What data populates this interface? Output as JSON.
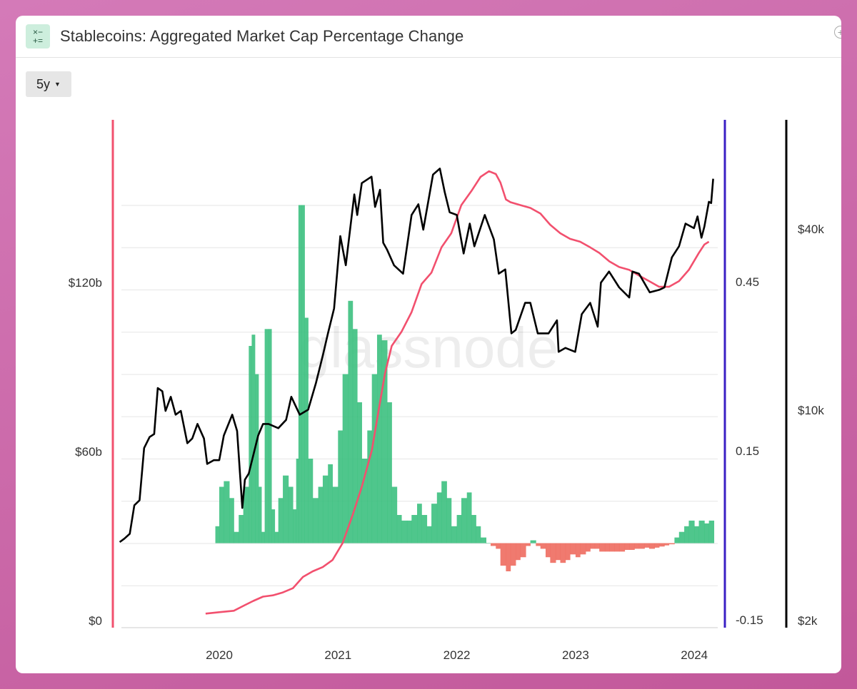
{
  "header": {
    "title": "Stablecoins: Aggregated Market Cap Percentage Change",
    "icon": "calculator-icon",
    "add_icon": "plus-circle-icon"
  },
  "range_selector": {
    "value": "5y",
    "icon": "caret-down-icon"
  },
  "watermark": "glassnode",
  "colors": {
    "market_cap": "#f2506e",
    "pct_positive": "#3cc07f",
    "pct_negative": "#ee6b5f",
    "price": "#000000",
    "axis_left": "#f2506e",
    "axis_mid": "#3a1fc4",
    "axis_right": "#000000"
  },
  "chart_data": {
    "type": "bar+line",
    "title": "Stablecoins: Aggregated Market Cap Percentage Change",
    "x_ticks": [
      "2020",
      "2021",
      "2022",
      "2023",
      "2024"
    ],
    "xlim": [
      "2019-03-01",
      "2024-03-15"
    ],
    "y_left": {
      "ticks": [
        "$0",
        "$60b",
        "$120b"
      ],
      "tick_values": [
        0,
        60,
        120
      ],
      "unit": "billion USD"
    },
    "y_mid": {
      "ticks": [
        "-0.15",
        "0.15",
        "0.45"
      ],
      "tick_values": [
        -0.15,
        0.15,
        0.45
      ]
    },
    "y_right": {
      "ticks": [
        "$2k",
        "$10k",
        "$40k"
      ],
      "tick_values": [
        2000,
        10000,
        40000
      ],
      "scale": "log"
    },
    "grid": true,
    "market_cap": [
      [
        "2019-11-20",
        5
      ],
      [
        "2020-01-01",
        5.5
      ],
      [
        "2020-02-15",
        6
      ],
      [
        "2020-03-20",
        8
      ],
      [
        "2020-04-15",
        9.5
      ],
      [
        "2020-05-15",
        11
      ],
      [
        "2020-06-15",
        11.5
      ],
      [
        "2020-07-15",
        12.5
      ],
      [
        "2020-08-15",
        14
      ],
      [
        "2020-09-15",
        18
      ],
      [
        "2020-10-15",
        20
      ],
      [
        "2020-11-15",
        21.5
      ],
      [
        "2020-12-15",
        24
      ],
      [
        "2021-01-15",
        30
      ],
      [
        "2021-02-15",
        40
      ],
      [
        "2021-03-15",
        50
      ],
      [
        "2021-04-15",
        63
      ],
      [
        "2021-05-10",
        80
      ],
      [
        "2021-05-25",
        90
      ],
      [
        "2021-06-15",
        100
      ],
      [
        "2021-07-15",
        105
      ],
      [
        "2021-08-15",
        112
      ],
      [
        "2021-09-15",
        122
      ],
      [
        "2021-10-15",
        126
      ],
      [
        "2021-11-15",
        135
      ],
      [
        "2021-12-15",
        140
      ],
      [
        "2022-01-15",
        150
      ],
      [
        "2022-02-15",
        155
      ],
      [
        "2022-03-15",
        160
      ],
      [
        "2022-04-10",
        162
      ],
      [
        "2022-05-01",
        161
      ],
      [
        "2022-05-15",
        158
      ],
      [
        "2022-06-01",
        152
      ],
      [
        "2022-06-15",
        151
      ],
      [
        "2022-07-15",
        150
      ],
      [
        "2022-08-15",
        149
      ],
      [
        "2022-09-15",
        147
      ],
      [
        "2022-10-15",
        143
      ],
      [
        "2022-11-15",
        140
      ],
      [
        "2022-12-15",
        138
      ],
      [
        "2023-01-15",
        137
      ],
      [
        "2023-02-15",
        135
      ],
      [
        "2023-03-15",
        133
      ],
      [
        "2023-04-15",
        130
      ],
      [
        "2023-05-15",
        128
      ],
      [
        "2023-06-15",
        127
      ],
      [
        "2023-07-15",
        125
      ],
      [
        "2023-08-15",
        123
      ],
      [
        "2023-09-15",
        121
      ],
      [
        "2023-10-15",
        121
      ],
      [
        "2023-11-15",
        123
      ],
      [
        "2023-12-15",
        127
      ],
      [
        "2024-01-15",
        133
      ],
      [
        "2024-02-01",
        136
      ],
      [
        "2024-02-15",
        137
      ]
    ],
    "pct_change": [
      [
        "2019-12-20",
        0.03
      ],
      [
        "2020-01-01",
        0.1
      ],
      [
        "2020-01-15",
        0.11
      ],
      [
        "2020-02-01",
        0.08
      ],
      [
        "2020-02-15",
        0.02
      ],
      [
        "2020-03-01",
        0.05
      ],
      [
        "2020-03-15",
        0.1
      ],
      [
        "2020-04-01",
        0.35
      ],
      [
        "2020-04-10",
        0.37
      ],
      [
        "2020-04-20",
        0.3
      ],
      [
        "2020-05-01",
        0.1
      ],
      [
        "2020-05-10",
        0.02
      ],
      [
        "2020-05-20",
        0.38
      ],
      [
        "2020-06-01",
        0.38
      ],
      [
        "2020-06-10",
        0.06
      ],
      [
        "2020-06-20",
        0.02
      ],
      [
        "2020-07-01",
        0.08
      ],
      [
        "2020-07-15",
        0.12
      ],
      [
        "2020-08-01",
        0.1
      ],
      [
        "2020-08-15",
        0.06
      ],
      [
        "2020-08-25",
        0.15
      ],
      [
        "2020-09-01",
        0.6
      ],
      [
        "2020-09-10",
        0.6
      ],
      [
        "2020-09-20",
        0.4
      ],
      [
        "2020-10-01",
        0.15
      ],
      [
        "2020-10-15",
        0.08
      ],
      [
        "2020-11-01",
        0.1
      ],
      [
        "2020-11-15",
        0.12
      ],
      [
        "2020-12-01",
        0.14
      ],
      [
        "2020-12-15",
        0.1
      ],
      [
        "2021-01-01",
        0.2
      ],
      [
        "2021-01-15",
        0.3
      ],
      [
        "2021-02-01",
        0.43
      ],
      [
        "2021-02-15",
        0.38
      ],
      [
        "2021-03-01",
        0.25
      ],
      [
        "2021-03-15",
        0.15
      ],
      [
        "2021-04-01",
        0.2
      ],
      [
        "2021-04-15",
        0.3
      ],
      [
        "2021-05-01",
        0.37
      ],
      [
        "2021-05-15",
        0.36
      ],
      [
        "2021-06-01",
        0.25
      ],
      [
        "2021-06-15",
        0.1
      ],
      [
        "2021-07-01",
        0.05
      ],
      [
        "2021-07-15",
        0.04
      ],
      [
        "2021-08-01",
        0.04
      ],
      [
        "2021-08-15",
        0.05
      ],
      [
        "2021-09-01",
        0.07
      ],
      [
        "2021-09-15",
        0.05
      ],
      [
        "2021-10-01",
        0.03
      ],
      [
        "2021-10-15",
        0.07
      ],
      [
        "2021-11-01",
        0.09
      ],
      [
        "2021-11-15",
        0.11
      ],
      [
        "2021-12-01",
        0.08
      ],
      [
        "2021-12-15",
        0.03
      ],
      [
        "2022-01-01",
        0.05
      ],
      [
        "2022-01-15",
        0.08
      ],
      [
        "2022-02-01",
        0.09
      ],
      [
        "2022-02-15",
        0.05
      ],
      [
        "2022-03-01",
        0.03
      ],
      [
        "2022-03-15",
        0.01
      ],
      [
        "2022-04-01",
        0.0
      ],
      [
        "2022-04-15",
        -0.005
      ],
      [
        "2022-05-01",
        -0.01
      ],
      [
        "2022-05-15",
        -0.04
      ],
      [
        "2022-06-01",
        -0.05
      ],
      [
        "2022-06-15",
        -0.04
      ],
      [
        "2022-07-01",
        -0.03
      ],
      [
        "2022-07-15",
        -0.025
      ],
      [
        "2022-08-01",
        -0.005
      ],
      [
        "2022-08-15",
        0.005
      ],
      [
        "2022-09-01",
        -0.005
      ],
      [
        "2022-09-15",
        -0.01
      ],
      [
        "2022-10-01",
        -0.025
      ],
      [
        "2022-10-15",
        -0.035
      ],
      [
        "2022-11-01",
        -0.03
      ],
      [
        "2022-11-15",
        -0.035
      ],
      [
        "2022-12-01",
        -0.03
      ],
      [
        "2022-12-15",
        -0.02
      ],
      [
        "2023-01-01",
        -0.025
      ],
      [
        "2023-01-15",
        -0.02
      ],
      [
        "2023-02-01",
        -0.015
      ],
      [
        "2023-02-15",
        -0.01
      ],
      [
        "2023-03-01",
        -0.01
      ],
      [
        "2023-03-15",
        -0.015
      ],
      [
        "2023-04-01",
        -0.015
      ],
      [
        "2023-04-15",
        -0.015
      ],
      [
        "2023-05-01",
        -0.015
      ],
      [
        "2023-05-15",
        -0.015
      ],
      [
        "2023-06-01",
        -0.012
      ],
      [
        "2023-06-15",
        -0.012
      ],
      [
        "2023-07-01",
        -0.01
      ],
      [
        "2023-07-15",
        -0.01
      ],
      [
        "2023-08-01",
        -0.008
      ],
      [
        "2023-08-15",
        -0.01
      ],
      [
        "2023-09-01",
        -0.008
      ],
      [
        "2023-09-15",
        -0.006
      ],
      [
        "2023-10-01",
        -0.004
      ],
      [
        "2023-10-15",
        -0.002
      ],
      [
        "2023-11-01",
        0.01
      ],
      [
        "2023-11-15",
        0.02
      ],
      [
        "2023-12-01",
        0.03
      ],
      [
        "2023-12-15",
        0.04
      ],
      [
        "2024-01-01",
        0.03
      ],
      [
        "2024-01-15",
        0.04
      ],
      [
        "2024-02-01",
        0.035
      ],
      [
        "2024-02-15",
        0.04
      ]
    ],
    "price": [
      [
        "2019-03-01",
        3850
      ],
      [
        "2019-03-15",
        3950
      ],
      [
        "2019-04-01",
        4100
      ],
      [
        "2019-04-15",
        5100
      ],
      [
        "2019-05-01",
        5300
      ],
      [
        "2019-05-15",
        7900
      ],
      [
        "2019-06-01",
        8600
      ],
      [
        "2019-06-15",
        8800
      ],
      [
        "2019-06-26",
        12500
      ],
      [
        "2019-07-10",
        12200
      ],
      [
        "2019-07-20",
        10500
      ],
      [
        "2019-08-05",
        11700
      ],
      [
        "2019-08-20",
        10200
      ],
      [
        "2019-09-05",
        10500
      ],
      [
        "2019-09-25",
        8200
      ],
      [
        "2019-10-10",
        8500
      ],
      [
        "2019-10-26",
        9500
      ],
      [
        "2019-11-15",
        8500
      ],
      [
        "2019-11-25",
        7000
      ],
      [
        "2019-12-15",
        7200
      ],
      [
        "2020-01-01",
        7200
      ],
      [
        "2020-01-15",
        8700
      ],
      [
        "2020-02-10",
        10200
      ],
      [
        "2020-02-25",
        9000
      ],
      [
        "2020-03-12",
        5000
      ],
      [
        "2020-03-20",
        6200
      ],
      [
        "2020-04-01",
        6500
      ],
      [
        "2020-04-30",
        8700
      ],
      [
        "2020-05-15",
        9500
      ],
      [
        "2020-06-01",
        9500
      ],
      [
        "2020-07-01",
        9200
      ],
      [
        "2020-07-25",
        9800
      ],
      [
        "2020-08-10",
        11700
      ],
      [
        "2020-09-05",
        10200
      ],
      [
        "2020-10-01",
        10600
      ],
      [
        "2020-10-25",
        13000
      ],
      [
        "2020-11-15",
        16000
      ],
      [
        "2020-12-01",
        19000
      ],
      [
        "2020-12-20",
        23000
      ],
      [
        "2021-01-08",
        40000
      ],
      [
        "2021-01-25",
        32000
      ],
      [
        "2021-02-20",
        55000
      ],
      [
        "2021-03-01",
        47000
      ],
      [
        "2021-03-15",
        60000
      ],
      [
        "2021-04-14",
        63000
      ],
      [
        "2021-04-25",
        50000
      ],
      [
        "2021-05-10",
        57000
      ],
      [
        "2021-05-20",
        38000
      ],
      [
        "2021-06-01",
        36000
      ],
      [
        "2021-06-22",
        32000
      ],
      [
        "2021-07-20",
        30000
      ],
      [
        "2021-08-15",
        47000
      ],
      [
        "2021-09-05",
        51000
      ],
      [
        "2021-09-20",
        42000
      ],
      [
        "2021-10-20",
        64000
      ],
      [
        "2021-11-10",
        67000
      ],
      [
        "2021-11-25",
        56000
      ],
      [
        "2021-12-10",
        48000
      ],
      [
        "2022-01-01",
        47000
      ],
      [
        "2022-01-22",
        35000
      ],
      [
        "2022-02-10",
        44000
      ],
      [
        "2022-02-24",
        37000
      ],
      [
        "2022-03-28",
        47000
      ],
      [
        "2022-04-25",
        39000
      ],
      [
        "2022-05-10",
        30000
      ],
      [
        "2022-05-30",
        31000
      ],
      [
        "2022-06-18",
        19000
      ],
      [
        "2022-07-01",
        19500
      ],
      [
        "2022-07-30",
        24000
      ],
      [
        "2022-08-15",
        24000
      ],
      [
        "2022-09-07",
        19000
      ],
      [
        "2022-10-10",
        19000
      ],
      [
        "2022-11-05",
        21000
      ],
      [
        "2022-11-10",
        16500
      ],
      [
        "2022-12-01",
        17000
      ],
      [
        "2022-12-31",
        16500
      ],
      [
        "2023-01-20",
        22000
      ],
      [
        "2023-02-15",
        24000
      ],
      [
        "2023-03-10",
        20000
      ],
      [
        "2023-03-20",
        28000
      ],
      [
        "2023-04-14",
        30500
      ],
      [
        "2023-05-15",
        27000
      ],
      [
        "2023-06-15",
        25000
      ],
      [
        "2023-06-25",
        30500
      ],
      [
        "2023-07-15",
        30000
      ],
      [
        "2023-08-17",
        26000
      ],
      [
        "2023-09-15",
        26500
      ],
      [
        "2023-10-01",
        27000
      ],
      [
        "2023-10-24",
        34000
      ],
      [
        "2023-11-15",
        37000
      ],
      [
        "2023-12-05",
        44000
      ],
      [
        "2023-12-31",
        42500
      ],
      [
        "2024-01-11",
        46500
      ],
      [
        "2024-01-23",
        39500
      ],
      [
        "2024-02-01",
        43000
      ],
      [
        "2024-02-15",
        52000
      ],
      [
        "2024-02-22",
        51500
      ],
      [
        "2024-02-28",
        62000
      ]
    ]
  }
}
